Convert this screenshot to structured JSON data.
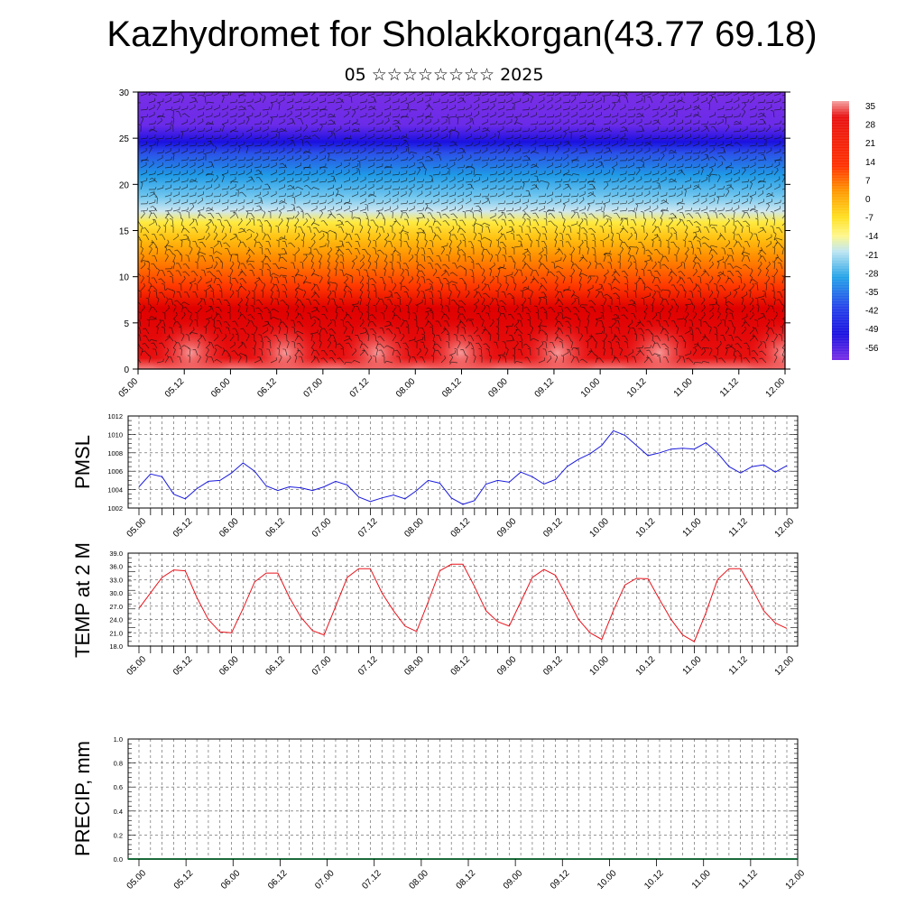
{
  "title": "Kazhydromet for Sholakkorgan(43.77 69.18)",
  "subtitle": "05 ☆☆☆☆☆☆☆☆ 2025",
  "colorbar": {
    "labels": [
      "35",
      "28",
      "21",
      "14",
      "7",
      "0",
      "-7",
      "-14",
      "-21",
      "-28",
      "-35",
      "-42",
      "-49",
      "-56"
    ]
  },
  "time_labels": [
    "05.00",
    "05.12",
    "06.00",
    "06.12",
    "07.00",
    "07.12",
    "08.00",
    "08.12",
    "09.00",
    "09.12",
    "10.00",
    "10.12",
    "11.00",
    "11.12",
    "12.00"
  ],
  "chart_data": [
    {
      "type": "heatmap",
      "title": "",
      "xlabel": "",
      "ylabel": "",
      "xlim": [
        "05.00",
        "12.00"
      ],
      "ylim": [
        0,
        30
      ],
      "yticks": [
        0,
        5,
        10,
        15,
        20,
        25,
        30
      ],
      "color_scale": {
        "min": -56,
        "max": 35,
        "colors": [
          "#7b2be0",
          "#2222ee",
          "#1aa7e8",
          "#bfe4f2",
          "#fff04a",
          "#ffb000",
          "#ff6a00",
          "#e80000",
          "#f08080"
        ]
      },
      "overlay": "wind barbs"
    },
    {
      "type": "line",
      "ylabel": "PMSL",
      "ylim": [
        1002,
        1012
      ],
      "yticks": [
        "1002",
        "1004",
        "1006",
        "1008",
        "1010",
        "1012"
      ],
      "series_color": "#1a1adc",
      "x_step_hours": 3,
      "values": [
        1004.3,
        1005.7,
        1005.4,
        1003.5,
        1003.0,
        1004.1,
        1004.9,
        1005.0,
        1005.8,
        1006.9,
        1006.0,
        1004.4,
        1003.9,
        1004.3,
        1004.2,
        1003.9,
        1004.3,
        1004.9,
        1004.5,
        1003.2,
        1002.7,
        1003.1,
        1003.4,
        1003.0,
        1003.9,
        1005.0,
        1004.7,
        1003.1,
        1002.4,
        1002.8,
        1004.6,
        1005.0,
        1004.8,
        1005.9,
        1005.4,
        1004.6,
        1005.1,
        1006.5,
        1007.3,
        1007.9,
        1008.8,
        1010.4,
        1009.9,
        1008.8,
        1007.7,
        1008.0,
        1008.4,
        1008.5,
        1008.4,
        1009.1,
        1008.0,
        1006.5,
        1005.8,
        1006.5,
        1006.7,
        1005.9,
        1006.6
      ]
    },
    {
      "type": "line",
      "ylabel": "TEMP at 2 M",
      "ylim": [
        18,
        39
      ],
      "yticks": [
        "18.0",
        "21.0",
        "24.0",
        "27.0",
        "30.0",
        "33.0",
        "36.0",
        "39.0"
      ],
      "series_color": "#e8141c",
      "x_step_hours": 3,
      "values": [
        26.5,
        30.0,
        33.5,
        35.2,
        35.0,
        29.0,
        24.0,
        21.2,
        21.0,
        26.5,
        32.5,
        34.5,
        34.5,
        29.0,
        24.5,
        21.5,
        20.5,
        27.0,
        33.5,
        35.5,
        35.5,
        30.0,
        26.0,
        22.5,
        21.3,
        28.0,
        35.0,
        36.5,
        36.5,
        31.5,
        26.0,
        23.5,
        22.5,
        28.0,
        33.5,
        35.3,
        34.0,
        29.0,
        24.0,
        21.0,
        19.5,
        26.0,
        31.8,
        33.3,
        33.2,
        28.5,
        24.0,
        20.5,
        19.0,
        25.5,
        33.0,
        35.5,
        35.5,
        31.0,
        26.0,
        23.2,
        22.0
      ]
    },
    {
      "type": "bar",
      "ylabel": "PRECIP, mm",
      "ylim": [
        0,
        1
      ],
      "yticks": [
        "0.0",
        "0.2",
        "0.4",
        "0.6",
        "0.8",
        "1.0"
      ],
      "values": [
        0,
        0,
        0,
        0,
        0,
        0,
        0,
        0,
        0,
        0,
        0,
        0,
        0,
        0,
        0,
        0,
        0,
        0,
        0,
        0,
        0,
        0,
        0,
        0,
        0,
        0,
        0,
        0,
        0,
        0,
        0,
        0,
        0,
        0,
        0,
        0,
        0,
        0,
        0,
        0,
        0,
        0,
        0,
        0,
        0,
        0,
        0,
        0,
        0,
        0,
        0,
        0,
        0,
        0,
        0,
        0,
        0
      ]
    }
  ]
}
